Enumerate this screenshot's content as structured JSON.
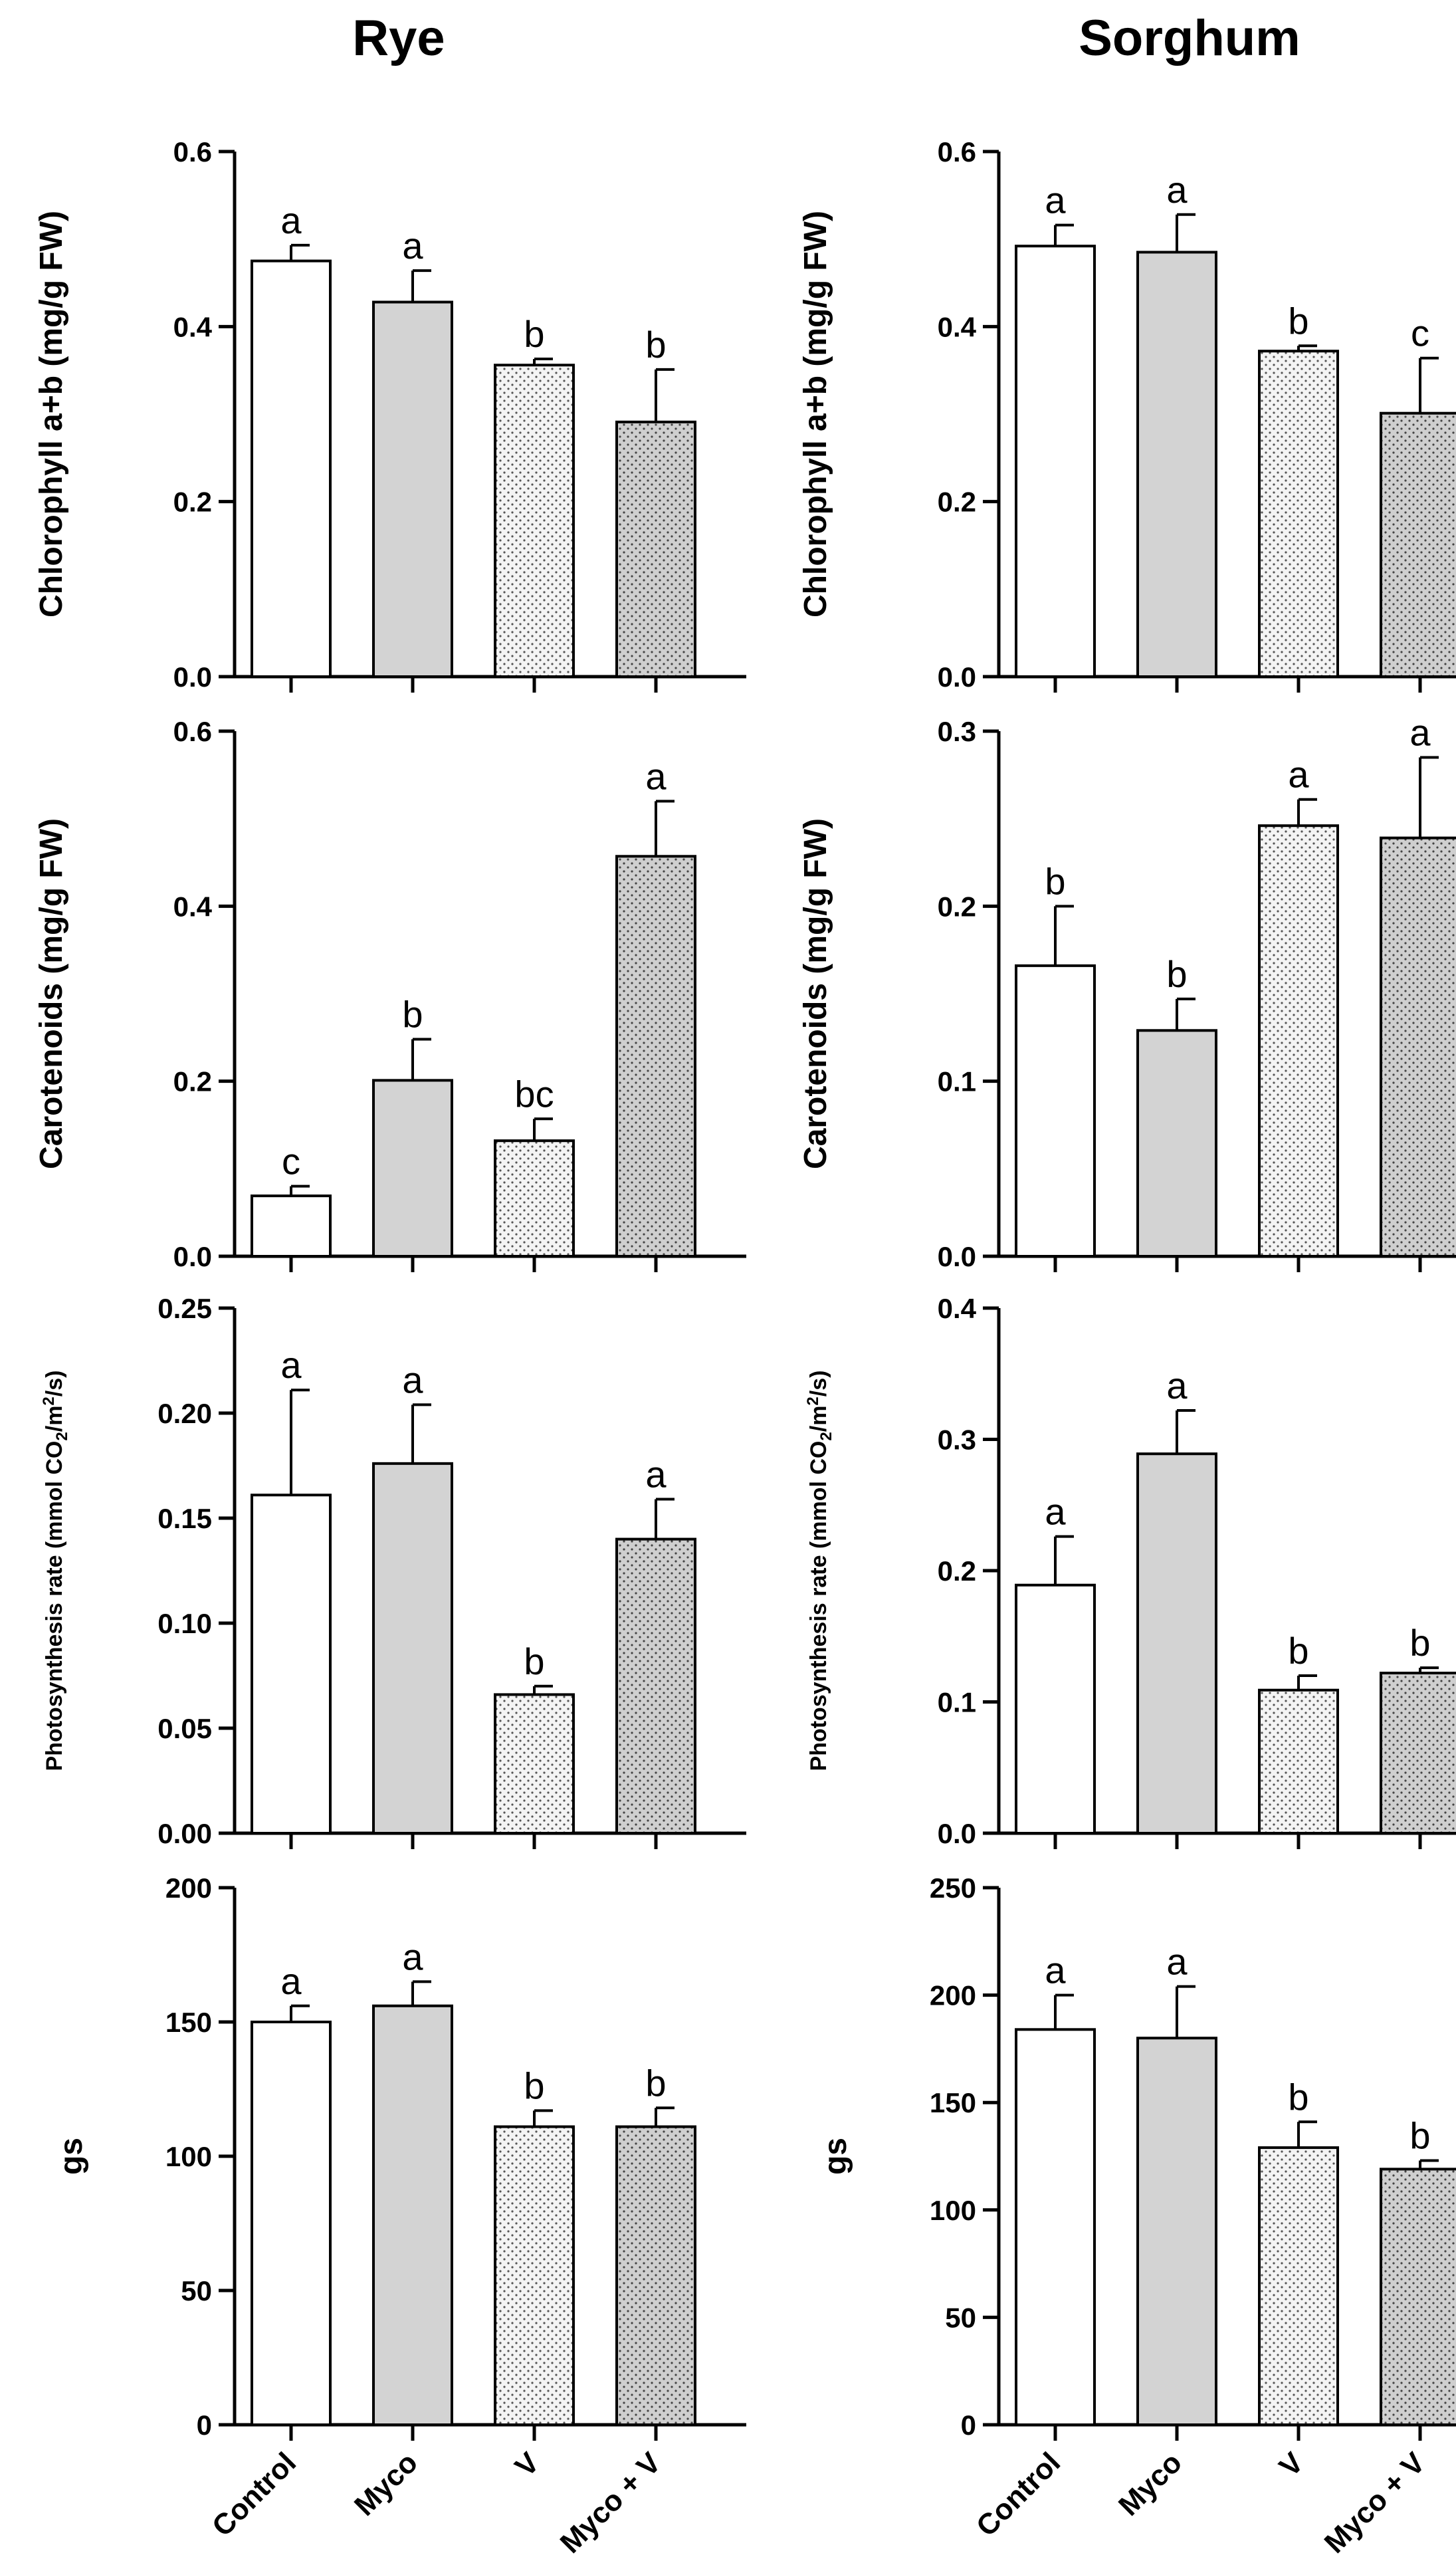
{
  "columns": [
    "Rye",
    "Sorghum"
  ],
  "categories": [
    "Control",
    "Myco",
    "V",
    "Myco + V"
  ],
  "fills": {
    "Control": "#ffffff",
    "Myco": "#d3d3d3",
    "V": "#f2f2f2",
    "Myco + V": "#cfcfcf",
    "stroke": "#000000",
    "dot": "#555555"
  },
  "chart_data": [
    {
      "type": "bar",
      "panel": "rye-chlorophyll",
      "column": "Rye",
      "ylabel": "Chlorophyll a+b (mg/g FW)",
      "ylim": [
        0,
        0.6
      ],
      "yticks": [
        "0.0",
        "0.2",
        "0.4",
        "0.6"
      ],
      "ytick_values": [
        0,
        0.2,
        0.4,
        0.6
      ],
      "categories": [
        "Control",
        "Myco",
        "V",
        "Myco + V"
      ],
      "values": [
        0.475,
        0.428,
        0.356,
        0.291
      ],
      "errors": [
        0.018,
        0.036,
        0.007,
        0.06
      ],
      "letters": [
        "a",
        "a",
        "b",
        "b"
      ]
    },
    {
      "type": "bar",
      "panel": "sorghum-chlorophyll",
      "column": "Sorghum",
      "ylabel": "Chlorophyll a+b (mg/g FW)",
      "ylim": [
        0,
        0.6
      ],
      "yticks": [
        "0.0",
        "0.2",
        "0.4",
        "0.6"
      ],
      "ytick_values": [
        0,
        0.2,
        0.4,
        0.6
      ],
      "categories": [
        "Control",
        "Myco",
        "V",
        "Myco + V"
      ],
      "values": [
        0.492,
        0.485,
        0.372,
        0.301
      ],
      "errors": [
        0.024,
        0.043,
        0.006,
        0.063
      ],
      "letters": [
        "a",
        "a",
        "b",
        "c"
      ]
    },
    {
      "type": "bar",
      "panel": "rye-carotenoids",
      "column": "Rye",
      "ylabel": "Carotenoids (mg/g FW)",
      "ylim": [
        0,
        0.6
      ],
      "yticks": [
        "0.0",
        "0.2",
        "0.4",
        "0.6"
      ],
      "ytick_values": [
        0,
        0.2,
        0.4,
        0.6
      ],
      "categories": [
        "Control",
        "Myco",
        "V",
        "Myco + V"
      ],
      "values": [
        0.069,
        0.201,
        0.132,
        0.457
      ],
      "errors": [
        0.011,
        0.047,
        0.025,
        0.063
      ],
      "letters": [
        "c",
        "b",
        "bc",
        "a"
      ]
    },
    {
      "type": "bar",
      "panel": "sorghum-carotenoids",
      "column": "Sorghum",
      "ylabel": "Carotenoids (mg/g FW)",
      "ylim": [
        0,
        0.3
      ],
      "yticks": [
        "0.0",
        "0.1",
        "0.2",
        "0.3"
      ],
      "ytick_values": [
        0,
        0.1,
        0.2,
        0.3
      ],
      "categories": [
        "Control",
        "Myco",
        "V",
        "Myco + V"
      ],
      "values": [
        0.166,
        0.129,
        0.246,
        0.239
      ],
      "errors": [
        0.034,
        0.018,
        0.015,
        0.046
      ],
      "letters": [
        "b",
        "b",
        "a",
        "a"
      ]
    },
    {
      "type": "bar",
      "panel": "rye-photosynthesis",
      "column": "Rye",
      "ylabel": "Photosynthesis rate (mmol CO",
      "ylabel_sub": "2",
      "ylabel_mid": "/m",
      "ylabel_sup": "2",
      "ylabel_end": "/s)",
      "ylim": [
        0,
        0.25
      ],
      "yticks": [
        "0.00",
        "0.05",
        "0.10",
        "0.15",
        "0.20",
        "0.25"
      ],
      "ytick_values": [
        0,
        0.05,
        0.1,
        0.15,
        0.2,
        0.25
      ],
      "categories": [
        "Control",
        "Myco",
        "V",
        "Myco + V"
      ],
      "values": [
        0.161,
        0.176,
        0.066,
        0.14
      ],
      "errors": [
        0.05,
        0.028,
        0.004,
        0.019
      ],
      "letters": [
        "a",
        "a",
        "b",
        "a"
      ]
    },
    {
      "type": "bar",
      "panel": "sorghum-photosynthesis",
      "column": "Sorghum",
      "ylabel": "Photosynthesis rate (mmol CO",
      "ylabel_sub": "2",
      "ylabel_mid": "/m",
      "ylabel_sup": "2",
      "ylabel_end": "/s)",
      "ylim": [
        0,
        0.4
      ],
      "yticks": [
        "0.0",
        "0.1",
        "0.2",
        "0.3",
        "0.4"
      ],
      "ytick_values": [
        0,
        0.1,
        0.2,
        0.3,
        0.4
      ],
      "categories": [
        "Control",
        "Myco",
        "V",
        "Myco + V"
      ],
      "values": [
        0.189,
        0.289,
        0.109,
        0.122
      ],
      "errors": [
        0.037,
        0.033,
        0.011,
        0.004
      ],
      "letters": [
        "a",
        "a",
        "b",
        "b"
      ]
    },
    {
      "type": "bar",
      "panel": "rye-gs",
      "column": "Rye",
      "ylabel": "gs",
      "ylim": [
        0,
        200
      ],
      "yticks": [
        "0",
        "50",
        "100",
        "150",
        "200"
      ],
      "ytick_values": [
        0,
        50,
        100,
        150,
        200
      ],
      "categories": [
        "Control",
        "Myco",
        "V",
        "Myco + V"
      ],
      "values": [
        150,
        156,
        111,
        111
      ],
      "errors": [
        6,
        9,
        6,
        7
      ],
      "letters": [
        "a",
        "a",
        "b",
        "b"
      ]
    },
    {
      "type": "bar",
      "panel": "sorghum-gs",
      "column": "Sorghum",
      "ylabel": "gs",
      "ylim": [
        0,
        250
      ],
      "yticks": [
        "0",
        "50",
        "100",
        "150",
        "200",
        "250"
      ],
      "ytick_values": [
        0,
        50,
        100,
        150,
        200,
        250
      ],
      "categories": [
        "Control",
        "Myco",
        "V",
        "Myco + V"
      ],
      "values": [
        184,
        180,
        129,
        119
      ],
      "errors": [
        16,
        24,
        12,
        4
      ],
      "letters": [
        "a",
        "a",
        "b",
        "b"
      ]
    }
  ]
}
